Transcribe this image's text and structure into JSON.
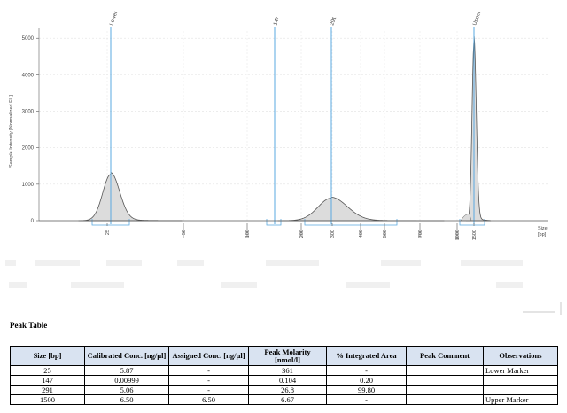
{
  "chart_data": {
    "type": "line",
    "ylabel": "Sample Intensity [Normalized FU]",
    "xlabel": "Size [bp]",
    "x_axis_label_line1": "Size",
    "x_axis_label_line2": "[bp]",
    "yticks": [
      0,
      1000,
      2000,
      3000,
      4000,
      5000
    ],
    "ylim": [
      0,
      5200
    ],
    "xticks": [
      "25",
      "50",
      "100",
      "200",
      "300",
      "400",
      "500",
      "700",
      "1000",
      "1500"
    ],
    "grid": true,
    "fill_color": "#dcdcdc",
    "marker_color": "#5aa9e0",
    "markers": [
      {
        "label": "Lower"
      },
      {
        "label": "147"
      },
      {
        "label": "291"
      },
      {
        "label": "Upper"
      }
    ],
    "peaks": [
      {
        "size": "25",
        "height": 1270
      },
      {
        "size": "291",
        "height": 620
      },
      {
        "size": "1500",
        "height": 4880
      }
    ]
  },
  "peak_table": {
    "title": "Peak Table",
    "headers": [
      "Size [bp]",
      "Calibrated Conc. [ng/µl]",
      "Assigned Conc. [ng/µl]",
      "Peak Molarity [nmol/l]",
      "% Integrated Area",
      "Peak Comment",
      "Observations"
    ],
    "rows": [
      [
        "25",
        "5.87",
        "-",
        "361",
        "-",
        "",
        "Lower Marker"
      ],
      [
        "147",
        "0.00999",
        "-",
        "0.104",
        "0.20",
        "",
        ""
      ],
      [
        "291",
        "5.06",
        "-",
        "26.8",
        "99.80",
        "",
        ""
      ],
      [
        "1500",
        "6.50",
        "6.50",
        "6.67",
        "-",
        "",
        "Upper Marker"
      ]
    ]
  }
}
